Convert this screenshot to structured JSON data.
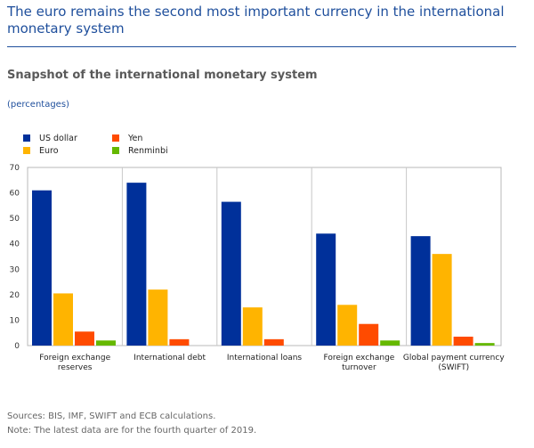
{
  "headline": "The euro remains the second most important currency in the international monetary system",
  "colors": {
    "us_dollar": "#00309a",
    "euro": "#ffb400",
    "yen": "#ff4b00",
    "renminbi": "#65b800"
  },
  "chart_data": {
    "type": "bar",
    "title": "Snapshot of the international monetary system",
    "unit_label": "(percentages)",
    "categories": [
      [
        "Foreign exchange",
        "reserves"
      ],
      [
        "International debt"
      ],
      [
        "International loans"
      ],
      [
        "Foreign exchange",
        "turnover"
      ],
      [
        "Global payment currency",
        "(SWIFT)"
      ]
    ],
    "series": [
      {
        "name": "US dollar",
        "color_key": "us_dollar",
        "values": [
          61,
          64,
          56.5,
          44,
          43
        ]
      },
      {
        "name": "Euro",
        "color_key": "euro",
        "values": [
          20.5,
          22,
          15,
          16,
          36
        ]
      },
      {
        "name": "Yen",
        "color_key": "yen",
        "values": [
          5.5,
          2.5,
          2.5,
          8.5,
          3.5
        ]
      },
      {
        "name": "Renminbi",
        "color_key": "renminbi",
        "values": [
          2,
          0,
          0,
          2,
          1
        ]
      }
    ],
    "ylim": [
      0,
      70
    ],
    "yticks": [
      "0",
      "10",
      "20",
      "30",
      "40",
      "50",
      "60",
      "70"
    ],
    "xlabel": "",
    "ylabel": ""
  },
  "notes": {
    "sources": "Sources: BIS, IMF, SWIFT and ECB calculations.",
    "note": "Note: The latest data are for the fourth quarter of 2019."
  }
}
